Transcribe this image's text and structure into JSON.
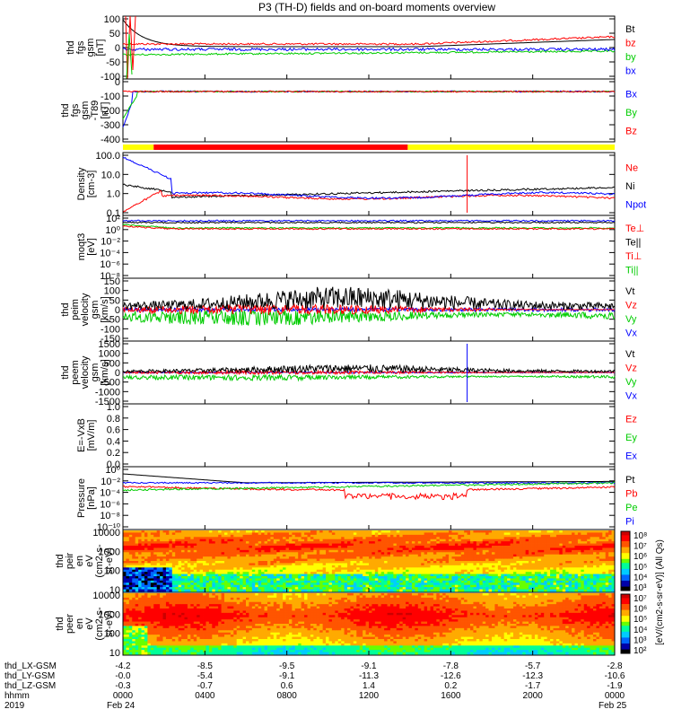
{
  "title": "P3 (TH-D) fields and on-board moments overview",
  "colors": {
    "black": "#000000",
    "red": "#ff0000",
    "green": "#00cc00",
    "blue": "#0000ff",
    "yellow": "#ffff00"
  },
  "chart_data": [
    {
      "type": "line",
      "panel": "fgs-gsm",
      "ylabel": [
        "thd",
        "fgs",
        "gsm",
        "[nT]"
      ],
      "ylim": [
        -100,
        100
      ],
      "yticks": [
        "100",
        "50",
        "0",
        "-50",
        "-100"
      ],
      "series": [
        {
          "name": "Bt",
          "color": "#000000"
        },
        {
          "name": "bz",
          "color": "#ff0000"
        },
        {
          "name": "by",
          "color": "#00cc00"
        },
        {
          "name": "bx",
          "color": "#0000ff"
        }
      ]
    },
    {
      "type": "line",
      "panel": "fgs-gsm-t89",
      "ylabel": [
        "thd",
        "fgs",
        "gsm",
        "-T89",
        "[nT]"
      ],
      "ylim": [
        -450,
        50
      ],
      "yticks": [
        "0",
        "-100",
        "-200",
        "-300",
        "-400"
      ],
      "series": [
        {
          "name": "Bx",
          "color": "#0000ff"
        },
        {
          "name": "By",
          "color": "#00cc00"
        },
        {
          "name": "Bz",
          "color": "#ff0000"
        }
      ]
    },
    {
      "type": "bar",
      "panel": "mode-bar",
      "segments": [
        {
          "from_hour": 0.0,
          "to_hour": 1.5,
          "color": "#ffff00"
        },
        {
          "from_hour": 1.5,
          "to_hour": 13.9,
          "color": "#ff0000"
        },
        {
          "from_hour": 13.9,
          "to_hour": 24.0,
          "color": "#ffff00"
        }
      ]
    },
    {
      "type": "line",
      "panel": "density",
      "ylabel": [
        "Density",
        "[cm-3]"
      ],
      "yscale": "log",
      "ylim": [
        0.1,
        200
      ],
      "yticks": [
        "100.0",
        "10.0",
        "1.0",
        "0.1"
      ],
      "series": [
        {
          "name": "Ne",
          "color": "#ff0000"
        },
        {
          "name": "Ni",
          "color": "#000000"
        },
        {
          "name": "Npot",
          "color": "#0000ff"
        }
      ]
    },
    {
      "type": "line",
      "panel": "temperature",
      "ylabel": [
        "moqt3",
        "[eV]"
      ],
      "yscale": "log",
      "yticks": [
        "10²",
        "10⁰",
        "10⁻²",
        "10⁻⁴",
        "10⁻⁶",
        "10⁻⁸"
      ],
      "series": [
        {
          "name": "Te⊥",
          "color": "#ff0000"
        },
        {
          "name": "Te||",
          "color": "#000000"
        },
        {
          "name": "Ti⊥",
          "color": "#ff0000"
        },
        {
          "name": "Ti||",
          "color": "#00cc00"
        }
      ]
    },
    {
      "type": "line",
      "panel": "peim-velocity",
      "ylabel": [
        "thd",
        "peim",
        "velocity",
        "gsm",
        "[km/s]"
      ],
      "ylim": [
        -150,
        150
      ],
      "yticks": [
        "150",
        "100",
        "50",
        "0",
        "-50",
        "-100",
        "-150"
      ],
      "series": [
        {
          "name": "Vt",
          "color": "#000000"
        },
        {
          "name": "Vz",
          "color": "#ff0000"
        },
        {
          "name": "Vy",
          "color": "#00cc00"
        },
        {
          "name": "Vx",
          "color": "#0000ff"
        }
      ]
    },
    {
      "type": "line",
      "panel": "peem-velocity",
      "ylabel": [
        "thd",
        "peem",
        "velocity",
        "gsm",
        "[km/s]"
      ],
      "ylim": [
        -1500,
        1500
      ],
      "yticks": [
        "1500",
        "1000",
        "500",
        "0",
        "-500",
        "-1000",
        "-1500"
      ],
      "series": [
        {
          "name": "Vt",
          "color": "#000000"
        },
        {
          "name": "Vz",
          "color": "#ff0000"
        },
        {
          "name": "Vy",
          "color": "#00cc00"
        },
        {
          "name": "Vx",
          "color": "#0000ff"
        }
      ]
    },
    {
      "type": "line",
      "panel": "e-field",
      "ylabel": [
        "E=-VxB",
        "[mV/m]"
      ],
      "ylim": [
        0.0,
        1.0
      ],
      "yticks": [
        "1.0",
        "0.8",
        "0.6",
        "0.4",
        "0.2",
        "0.0"
      ],
      "series": [
        {
          "name": "Ez",
          "color": "#ff0000"
        },
        {
          "name": "Ey",
          "color": "#00cc00"
        },
        {
          "name": "Ex",
          "color": "#0000ff"
        }
      ]
    },
    {
      "type": "line",
      "panel": "pressure",
      "ylabel": [
        "Pressure",
        "[nPa]"
      ],
      "yscale": "log",
      "yticks": [
        "10⁰",
        "10⁻²",
        "10⁻⁴",
        "10⁻⁶",
        "10⁻⁸",
        "10⁻¹⁰"
      ],
      "series": [
        {
          "name": "Pt",
          "color": "#000000"
        },
        {
          "name": "Pb",
          "color": "#ff0000"
        },
        {
          "name": "Pe",
          "color": "#00cc00"
        },
        {
          "name": "Pi",
          "color": "#0000ff"
        }
      ]
    },
    {
      "type": "heatmap",
      "panel": "peir-en-eflux",
      "ylabel": [
        "thd",
        "peir",
        "en",
        "eV",
        "(cm2-s-",
        "sr-eV)"
      ],
      "yscale": "log",
      "yticks": [
        "10000",
        "1000",
        "100",
        "10"
      ],
      "colorbar_ticks": [
        "10⁸",
        "10⁷",
        "10⁶",
        "10⁵",
        "10⁴",
        "10³"
      ]
    },
    {
      "type": "heatmap",
      "panel": "peer-en-eflux",
      "ylabel": [
        "thd",
        "peer",
        "en",
        "eV",
        "(cm2-s-",
        "sr-eV)"
      ],
      "yscale": "log",
      "yticks": [
        "10000",
        "1000",
        "100",
        "10"
      ],
      "colorbar_ticks": [
        "10⁷",
        "10⁶",
        "10⁵",
        "10⁴",
        "10³",
        "10²"
      ]
    }
  ],
  "colorbar_label": "[eV/(cm2-s-sr-eV)] (All Qs)",
  "ephemeris": {
    "rows": [
      {
        "label": "thd_LX-GSM",
        "values": [
          "-4.2",
          "-8.5",
          "-9.5",
          "-9.1",
          "-7.8",
          "-5.7",
          "-2.8"
        ]
      },
      {
        "label": "thd_LY-GSM",
        "values": [
          "-0.0",
          "-5.4",
          "-9.1",
          "-11.3",
          "-12.6",
          "-12.3",
          "-10.6"
        ]
      },
      {
        "label": "thd_LZ-GSM",
        "values": [
          "-0.3",
          "-0.7",
          "0.6",
          "1.4",
          "0.2",
          "-1.7",
          "-1.9"
        ]
      },
      {
        "label": "hhmm",
        "values": [
          "0000",
          "0400",
          "0800",
          "1200",
          "1600",
          "2000",
          "0000"
        ]
      }
    ],
    "year": "2019",
    "start_date": "Feb 24",
    "end_date": "Feb 25"
  }
}
